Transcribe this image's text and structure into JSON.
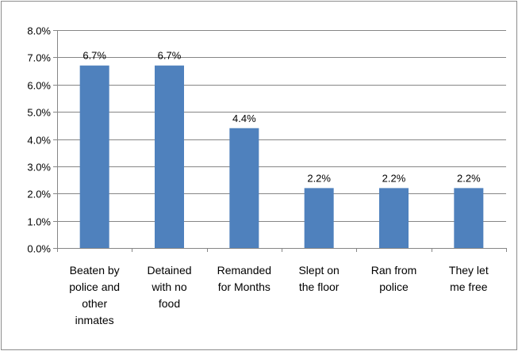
{
  "chart_data": {
    "type": "bar",
    "categories": [
      [
        "Beaten by",
        "police and",
        "other",
        "inmates"
      ],
      [
        "Detained",
        "with no",
        "food"
      ],
      [
        "Remanded",
        "for Months"
      ],
      [
        "Slept on",
        "the floor"
      ],
      [
        "Ran from",
        "police"
      ],
      [
        "They let",
        "me free"
      ]
    ],
    "values": [
      6.7,
      6.7,
      4.4,
      2.2,
      2.2,
      2.2
    ],
    "data_labels": [
      "6.7%",
      "6.7%",
      "4.4%",
      "2.2%",
      "2.2%",
      "2.2%"
    ],
    "ylim": [
      0,
      8
    ],
    "yticks": [
      "0.0%",
      "1.0%",
      "2.0%",
      "3.0%",
      "4.0%",
      "5.0%",
      "6.0%",
      "7.0%",
      "8.0%"
    ],
    "grid": true,
    "bar_color": "#4f81bd",
    "grid_color": "#868686",
    "title": "",
    "xlabel": "",
    "ylabel": ""
  }
}
